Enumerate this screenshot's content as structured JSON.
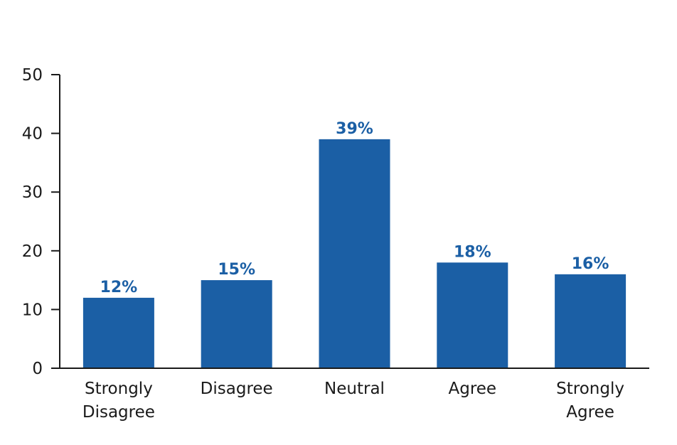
{
  "chart_data": {
    "type": "bar",
    "categories": [
      [
        "Strongly",
        "Disagree"
      ],
      [
        "Disagree"
      ],
      [
        "Neutral"
      ],
      [
        "Agree"
      ],
      [
        "Strongly",
        "Agree"
      ]
    ],
    "values": [
      12,
      15,
      39,
      18,
      16
    ],
    "value_labels": [
      "12%",
      "15%",
      "39%",
      "18%",
      "16%"
    ],
    "ylim": [
      0,
      50
    ],
    "yticks": [
      "0",
      "10",
      "20",
      "30",
      "40",
      "50"
    ],
    "grid": false,
    "colors": {
      "bar": "#1b5fa5",
      "value_label": "#1b5fa5",
      "axis": "#1a1a1a"
    }
  }
}
